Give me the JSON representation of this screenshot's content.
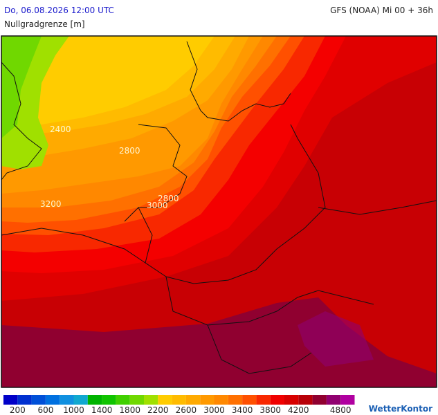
{
  "header": {
    "datetime": "Do, 06.08.2026 12:00 UTC",
    "model": "GFS (NOAA) Mi 00 + 36h",
    "parameter": "Nullgradgrenze [m]"
  },
  "map": {
    "contour_labels": [
      2400,
      2800,
      3200,
      2800,
      3000
    ]
  },
  "legend": {
    "colors": [
      "#0000c8",
      "#0030d0",
      "#0050d8",
      "#0070e0",
      "#1090e0",
      "#10a8d0",
      "#00b400",
      "#10c400",
      "#40d000",
      "#70d800",
      "#a0e000",
      "#ffcc00",
      "#ffbb00",
      "#ffaa00",
      "#ff9900",
      "#ff8800",
      "#ff7000",
      "#ff5000",
      "#f82800",
      "#f00000",
      "#d80000",
      "#b80008",
      "#900030",
      "#900070",
      "#b000a0"
    ],
    "labels": [
      200,
      600,
      1000,
      1400,
      1800,
      2200,
      2600,
      3000,
      3400,
      3800,
      4200,
      4800
    ]
  },
  "logo": "WetterKontor"
}
